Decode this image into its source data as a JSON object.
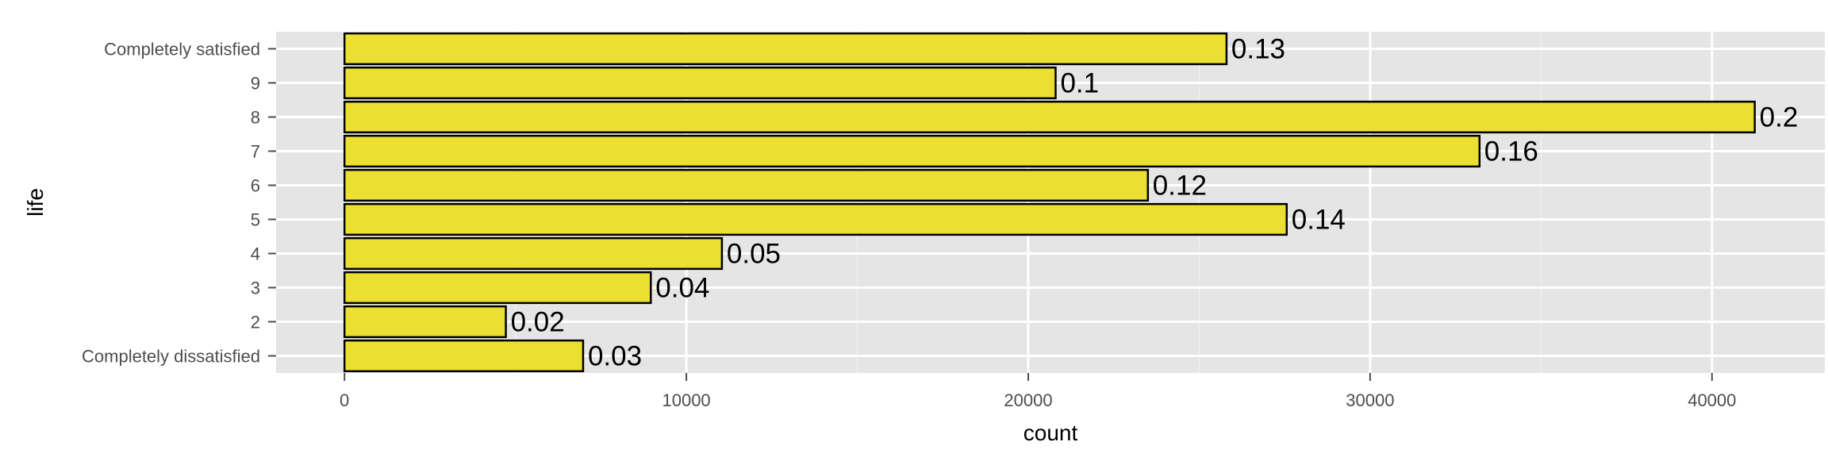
{
  "chart_data": {
    "type": "bar",
    "orientation": "horizontal",
    "title": "",
    "xlabel": "count",
    "ylabel": "life",
    "categories": [
      "Completely dissatisfied",
      "2",
      "3",
      "4",
      "5",
      "6",
      "7",
      "8",
      "9",
      "Completely satisfied"
    ],
    "values": [
      6980,
      4720,
      8960,
      11040,
      27560,
      23500,
      33200,
      41250,
      20800,
      25800
    ],
    "data_labels": [
      "0.03",
      "0.02",
      "0.04",
      "0.05",
      "0.14",
      "0.12",
      "0.16",
      "0.2",
      "0.1",
      "0.13"
    ],
    "x_ticks": [
      0,
      10000,
      20000,
      30000,
      40000
    ],
    "x_tick_labels": [
      "0",
      "10000",
      "20000",
      "30000",
      "40000"
    ],
    "xlim": [
      -2000,
      43300
    ],
    "grid": true,
    "legend": "none",
    "colors": {
      "panel_background": "#e5e5e5",
      "major_grid": "#ffffff",
      "minor_grid": "#f0f0f0",
      "bar_fill": "#ebe032",
      "bar_stroke": "#000000",
      "axis_text": "#4d4d4d",
      "label_text": "#000000"
    }
  }
}
